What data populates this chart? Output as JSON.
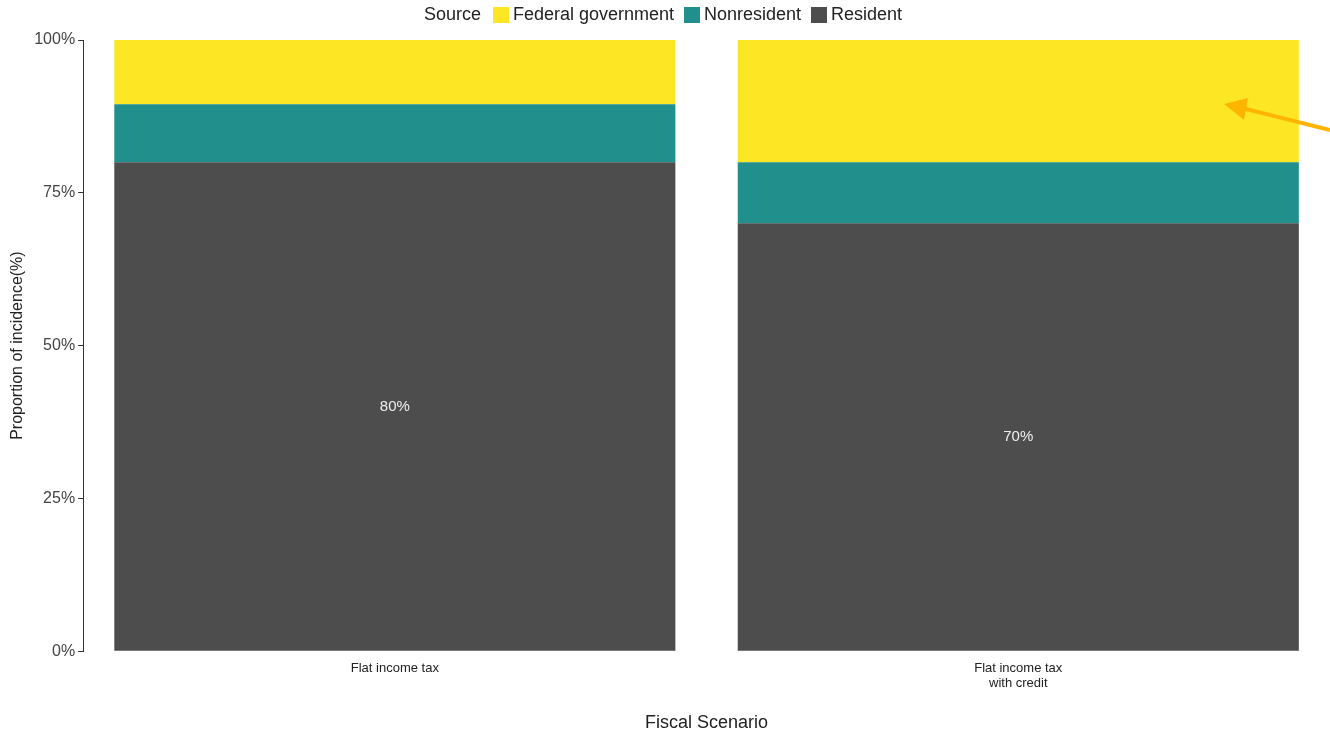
{
  "chart_data": {
    "type": "bar",
    "stacked": true,
    "xlabel": "Fiscal Scenario",
    "ylabel": "Proportion of incidence(%)",
    "legend_title": "Source",
    "legend": "top",
    "categories": [
      "Flat income tax",
      "Flat income tax\nwith credit"
    ],
    "series": [
      {
        "name": "Resident",
        "color": "#4d4d4d",
        "values": [
          80,
          70
        ],
        "value_labels": [
          "80%",
          "70%"
        ]
      },
      {
        "name": "Nonresident",
        "color": "#21908c",
        "values": [
          9.5,
          10
        ]
      },
      {
        "name": "Federal government",
        "color": "#fde725",
        "values": [
          10.5,
          20
        ]
      }
    ],
    "ylim": [
      0,
      100
    ],
    "yticks": [
      {
        "value": 0,
        "label": "0%"
      },
      {
        "value": 25,
        "label": "25%"
      },
      {
        "value": 50,
        "label": "50%"
      },
      {
        "value": 75,
        "label": "75%"
      },
      {
        "value": 100,
        "label": "100%"
      }
    ],
    "grid": false
  }
}
